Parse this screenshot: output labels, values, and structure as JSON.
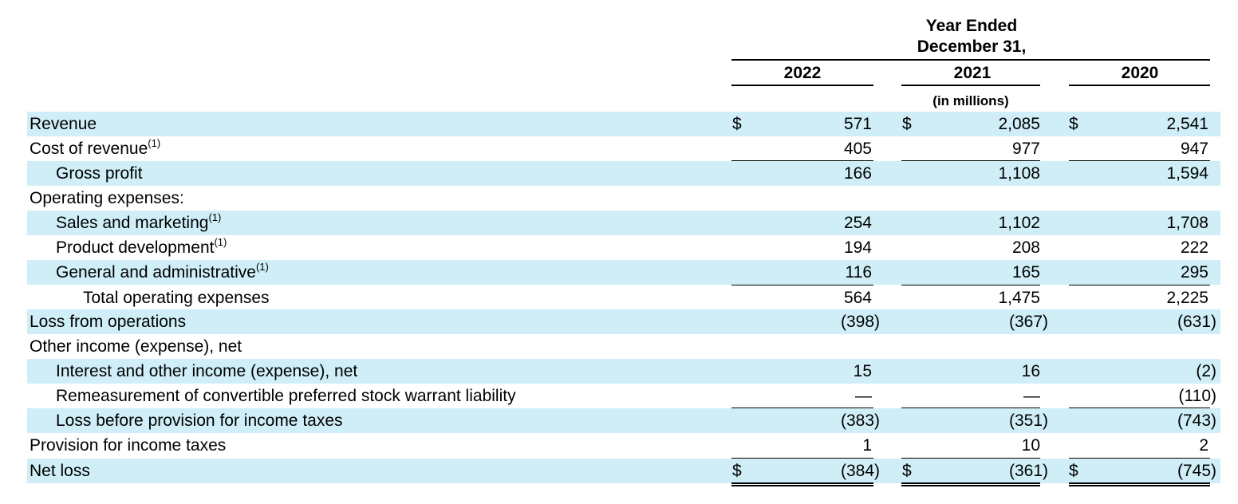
{
  "header": {
    "period_line1": "Year Ended",
    "period_line2": "December 31,",
    "years": [
      "2022",
      "2021",
      "2020"
    ],
    "units": "(in millions)"
  },
  "currency_symbol": "$",
  "rows": [
    {
      "label": "Revenue",
      "footnote": "",
      "values": [
        "571",
        "2,085",
        "2,541"
      ]
    },
    {
      "label": "Cost of revenue",
      "footnote": "(1)",
      "values": [
        "405",
        "977",
        "947"
      ]
    },
    {
      "label": "Gross profit",
      "footnote": "",
      "values": [
        "166",
        "1,108",
        "1,594"
      ]
    },
    {
      "label": "Operating expenses:",
      "footnote": "",
      "values": [
        "",
        "",
        ""
      ]
    },
    {
      "label": "Sales and marketing",
      "footnote": "(1)",
      "values": [
        "254",
        "1,102",
        "1,708"
      ]
    },
    {
      "label": "Product development",
      "footnote": "(1)",
      "values": [
        "194",
        "208",
        "222"
      ]
    },
    {
      "label": "General and administrative",
      "footnote": "(1)",
      "values": [
        "116",
        "165",
        "295"
      ]
    },
    {
      "label": "Total operating expenses",
      "footnote": "",
      "values": [
        "564",
        "1,475",
        "2,225"
      ]
    },
    {
      "label": "Loss from operations",
      "footnote": "",
      "values": [
        "(398)",
        "(367)",
        "(631)"
      ]
    },
    {
      "label": "Other income (expense), net",
      "footnote": "",
      "values": [
        "",
        "",
        ""
      ]
    },
    {
      "label": "Interest and other income (expense), net",
      "footnote": "",
      "values": [
        "15",
        "16",
        "(2)"
      ]
    },
    {
      "label": "Remeasurement of convertible preferred stock warrant liability",
      "footnote": "",
      "values": [
        "—",
        "—",
        "(110)"
      ]
    },
    {
      "label": "Loss before provision for income taxes",
      "footnote": "",
      "values": [
        "(383)",
        "(351)",
        "(743)"
      ]
    },
    {
      "label": "Provision for income taxes",
      "footnote": "",
      "values": [
        "1",
        "10",
        "2"
      ]
    },
    {
      "label": "Net loss",
      "footnote": "",
      "values": [
        "(384)",
        "(361)",
        "(745)"
      ]
    }
  ]
}
